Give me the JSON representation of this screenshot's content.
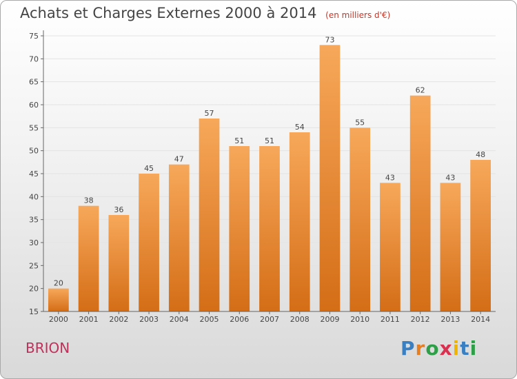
{
  "header": {
    "title": "Achats et Charges Externes 2000 à 2014",
    "unit": "(en milliers d'€)"
  },
  "commune": "BRION",
  "brand": {
    "letters": [
      "P",
      "r",
      "o",
      "x",
      "i",
      "t",
      "i"
    ],
    "colors": [
      "#3a7fc1",
      "#e67e22",
      "#2e9e48",
      "#d9304f",
      "#f0b400",
      "#3a7fc1",
      "#2e9e48"
    ]
  },
  "colors": {
    "bar": "#f08a2c",
    "bar_top": "#f7a85a",
    "bar_bottom": "#d9711a",
    "axis": "#666666",
    "grid": "#e6e6e6"
  },
  "chart_data": {
    "type": "bar",
    "title": "Achats et Charges Externes 2000 à 2014",
    "subtitle": "(en milliers d'€)",
    "categories": [
      "2000",
      "2001",
      "2002",
      "2003",
      "2004",
      "2005",
      "2006",
      "2007",
      "2008",
      "2009",
      "2010",
      "2011",
      "2012",
      "2013",
      "2014"
    ],
    "values": [
      20,
      38,
      36,
      45,
      47,
      57,
      51,
      51,
      54,
      73,
      55,
      43,
      62,
      43,
      48
    ],
    "ylim": [
      15,
      75
    ],
    "yticks": [
      15,
      20,
      25,
      30,
      35,
      40,
      45,
      50,
      55,
      60,
      65,
      70,
      75
    ],
    "xlabel": "",
    "ylabel": "",
    "grid": true,
    "data_labels": true
  }
}
